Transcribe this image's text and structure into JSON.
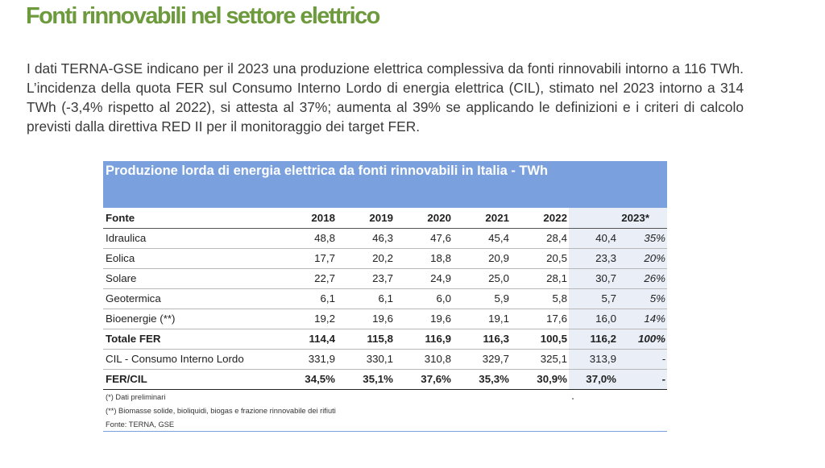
{
  "title": "Fonti rinnovabili nel settore elettrico",
  "intro": "I dati TERNA-GSE indicano per il 2023 una produzione elettrica complessiva da fonti rinnovabili intorno a 116 TWh. L’incidenza della quota FER sul Consumo Interno Lordo di energia elettrica (CIL), stimato nel 2023 intorno a 314 TWh (-3,4% rispetto al 2022), si attesta al 37%; aumenta al 39% se applicando le definizioni e i criteri di calcolo previsti dalla direttiva RED II per il monitoraggio dei target FER.",
  "table": {
    "caption": "Produzione lorda di energia elettrica da fonti rinnovabili in Italia - TWh",
    "header": {
      "fonte": "Fonte",
      "years": [
        "2018",
        "2019",
        "2020",
        "2021",
        "2022"
      ],
      "y2023": "2023*"
    },
    "rows": [
      {
        "label": "Idraulica",
        "values": [
          "48,8",
          "46,3",
          "47,6",
          "45,4",
          "28,4"
        ],
        "v2023": "40,4",
        "pct": "35%"
      },
      {
        "label": "Eolica",
        "values": [
          "17,7",
          "20,2",
          "18,8",
          "20,9",
          "20,5"
        ],
        "v2023": "23,3",
        "pct": "20%"
      },
      {
        "label": "Solare",
        "values": [
          "22,7",
          "23,7",
          "24,9",
          "25,0",
          "28,1"
        ],
        "v2023": "30,7",
        "pct": "26%"
      },
      {
        "label": "Geotermica",
        "values": [
          "6,1",
          "6,1",
          "6,0",
          "5,9",
          "5,8"
        ],
        "v2023": "5,7",
        "pct": "5%"
      },
      {
        "label": "Bioenergie (**)",
        "values": [
          "19,2",
          "19,6",
          "19,6",
          "19,1",
          "17,6"
        ],
        "v2023": "16,0",
        "pct": "14%"
      }
    ],
    "total": {
      "label": "Totale FER",
      "values": [
        "114,4",
        "115,8",
        "116,9",
        "116,3",
        "100,5"
      ],
      "v2023": "116,2",
      "pct": "100%"
    },
    "cil": {
      "label": "CIL - Consumo Interno Lordo",
      "values": [
        "331,9",
        "330,1",
        "310,8",
        "329,7",
        "325,1"
      ],
      "v2023": "313,9",
      "pct": "-"
    },
    "fercil": {
      "label": "FER/CIL",
      "values": [
        "34,5%",
        "35,1%",
        "37,6%",
        "35,3%",
        "30,9%"
      ],
      "v2023": "37,0%",
      "pct": "-"
    }
  },
  "notes": [
    "(*) Dati preliminari",
    "(**) Biomasse solide, bioliquidi, biogas e frazione rinnovabile dei rifiuti",
    "Fonte: TERNA, GSE"
  ],
  "colors": {
    "title": "#6d9a3c",
    "header_bg": "#7aa1de",
    "highlight": "#e9eef7"
  }
}
